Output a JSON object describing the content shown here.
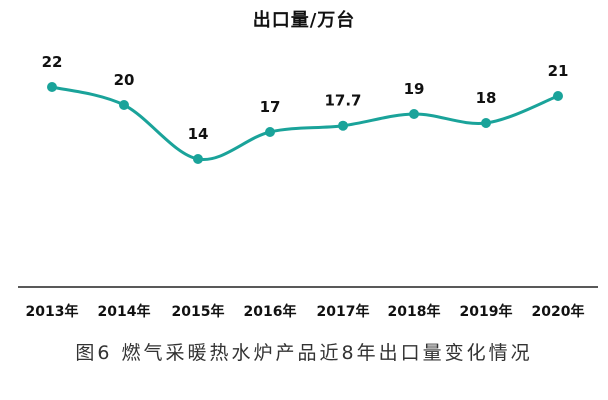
{
  "chart_data": {
    "type": "line",
    "title": "出口量/万台",
    "xlabel": "",
    "ylabel": "",
    "categories": [
      "2013年",
      "2014年",
      "2015年",
      "2016年",
      "2017年",
      "2018年",
      "2019年",
      "2020年"
    ],
    "values": [
      22,
      20,
      14,
      17,
      17.7,
      19,
      18,
      21
    ],
    "data_labels": [
      "22",
      "20",
      "14",
      "17",
      "17.7",
      "19",
      "18",
      "21"
    ],
    "line_color": "#1aa39a",
    "axis_color": "#222222",
    "grid": false,
    "legend": "none"
  },
  "caption": "图6 燃气采暖热水炉产品近8年出口量变化情况"
}
